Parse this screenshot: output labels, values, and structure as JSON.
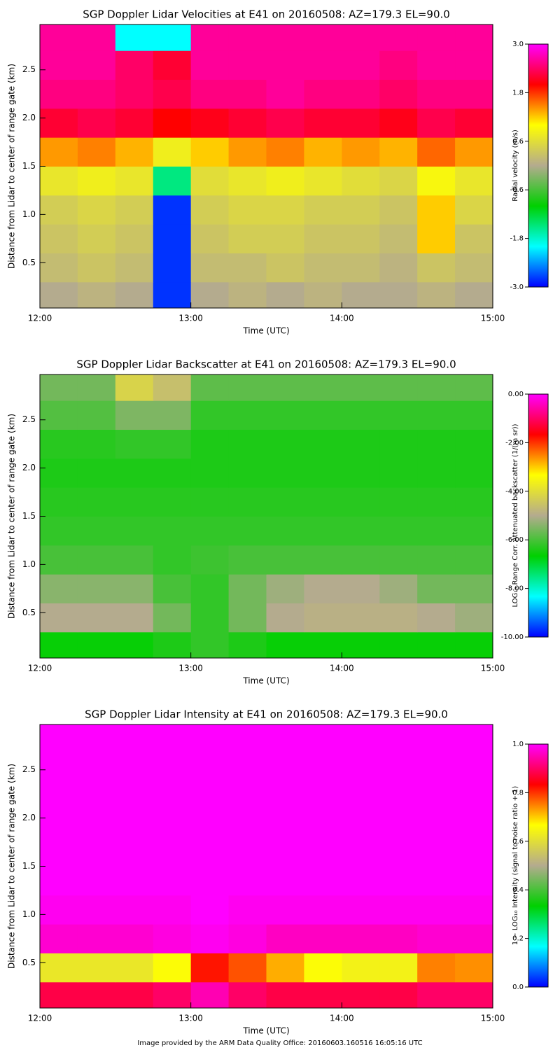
{
  "chart_data": [
    {
      "type": "heatmap",
      "title": "SGP Doppler Lidar Velocities at E41 on 20160508: AZ=179.3 EL=90.0",
      "x_label": "Time (UTC)",
      "y_label": "Distance from Lidar to center of range gate (km)",
      "colorbar_label": "Radial velocity (m/s)",
      "xlim": [
        12,
        15
      ],
      "xticks": [
        {
          "value": 12,
          "label": "12:00"
        },
        {
          "value": 13,
          "label": "13:00"
        },
        {
          "value": 14,
          "label": "14:00"
        },
        {
          "value": 15,
          "label": "15:00"
        }
      ],
      "ylim": [
        0.03,
        2.97
      ],
      "yticks": [
        0.5,
        {
          "value": 1,
          "label": "1.0"
        },
        1.5,
        {
          "value": 2,
          "label": "2.0"
        },
        2.5
      ],
      "zlim": [
        -3,
        3
      ],
      "zticks": [
        {
          "value": -3,
          "label": "-3.0"
        },
        {
          "value": -1.8,
          "label": "-1.8"
        },
        {
          "value": -0.6,
          "label": "-0.6"
        },
        {
          "value": 0.6,
          "label": "0.6"
        },
        {
          "value": 1.8,
          "label": "1.8"
        },
        {
          "value": 3,
          "label": "3.0"
        }
      ],
      "colormap": [
        "#0000ff",
        "#00ffff",
        "#00d000",
        "#b4ab8e",
        "#ffff00",
        "#ff0000",
        "#ff00ff"
      ],
      "x": [
        12.125,
        12.375,
        12.625,
        12.875,
        13.125,
        13.375,
        13.625,
        13.875,
        14.125,
        14.375,
        14.625,
        14.875
      ],
      "y": [
        0.15,
        0.45,
        0.75,
        1.05,
        1.35,
        1.65,
        1.95,
        2.25,
        2.55,
        2.85
      ],
      "z": [
        [
          0.0,
          0.1,
          0.0,
          -2.8,
          0.0,
          0.1,
          0.0,
          0.1,
          0.0,
          0.0,
          0.1,
          0.0
        ],
        [
          0.2,
          0.3,
          0.2,
          -2.8,
          0.2,
          0.2,
          0.3,
          0.2,
          0.2,
          0.1,
          0.3,
          0.2
        ],
        [
          0.3,
          0.4,
          0.3,
          -2.8,
          0.3,
          0.4,
          0.4,
          0.3,
          0.3,
          0.2,
          1.2,
          0.3
        ],
        [
          0.4,
          0.5,
          0.4,
          -2.8,
          0.4,
          0.5,
          0.5,
          0.4,
          0.4,
          0.3,
          1.2,
          0.5
        ],
        [
          0.7,
          0.8,
          0.7,
          -1.5,
          0.6,
          0.7,
          0.8,
          0.7,
          0.6,
          0.5,
          0.9,
          0.7
        ],
        [
          1.4,
          1.5,
          1.3,
          0.8,
          1.2,
          1.4,
          1.5,
          1.3,
          1.4,
          1.3,
          1.6,
          1.4
        ],
        [
          2.2,
          2.3,
          2.2,
          2.0,
          2.1,
          2.2,
          2.3,
          2.2,
          2.2,
          2.1,
          2.3,
          2.2
        ],
        [
          2.5,
          2.5,
          2.4,
          2.3,
          2.5,
          2.5,
          2.6,
          2.5,
          2.5,
          2.4,
          2.5,
          2.5
        ],
        [
          2.6,
          2.6,
          2.4,
          2.2,
          2.6,
          2.6,
          2.6,
          2.6,
          2.6,
          2.5,
          2.6,
          2.6
        ],
        [
          2.6,
          2.6,
          -2.0,
          -2.0,
          2.6,
          2.6,
          2.6,
          2.6,
          2.6,
          2.6,
          2.6,
          2.6
        ]
      ]
    },
    {
      "type": "heatmap",
      "title": "SGP Doppler Lidar Backscatter at E41 on 20160508: AZ=179.3 EL=90.0",
      "x_label": "Time (UTC)",
      "y_label": "Distance from Lidar to center of range gate (km)",
      "colorbar_label": "LOG₁₀ Range Corr. Attenuated backscatter (1/(m sr))",
      "xlim": [
        12,
        15
      ],
      "xticks": [
        {
          "value": 12,
          "label": "12:00"
        },
        {
          "value": 13,
          "label": "13:00"
        },
        {
          "value": 14,
          "label": "14:00"
        },
        {
          "value": 15,
          "label": "15:00"
        }
      ],
      "ylim": [
        0.03,
        2.97
      ],
      "yticks": [
        0.5,
        {
          "value": 1,
          "label": "1.0"
        },
        1.5,
        {
          "value": 2,
          "label": "2.0"
        },
        2.5
      ],
      "zlim": [
        -10,
        0
      ],
      "zticks": [
        {
          "value": -10,
          "label": "-10.00"
        },
        {
          "value": -8,
          "label": "-8.00"
        },
        {
          "value": -6,
          "label": "-6.00"
        },
        {
          "value": -4,
          "label": "-4.00"
        },
        {
          "value": -2,
          "label": "-2.00"
        },
        {
          "value": 0,
          "label": "0.00"
        }
      ],
      "colormap": [
        "#0000ff",
        "#00ffff",
        "#00d000",
        "#b4ab8e",
        "#ffff00",
        "#ff0000",
        "#ff00ff"
      ],
      "x": [
        12.125,
        12.375,
        12.625,
        12.875,
        13.125,
        13.375,
        13.625,
        13.875,
        14.125,
        14.375,
        14.625,
        14.875
      ],
      "y": [
        0.15,
        0.45,
        0.75,
        1.05,
        1.35,
        1.65,
        1.95,
        2.25,
        2.55,
        2.85
      ],
      "z": [
        [
          -6.6,
          -6.6,
          -6.6,
          -6.4,
          -6.2,
          -6.4,
          -6.6,
          -6.6,
          -6.6,
          -6.6,
          -6.6,
          -6.6
        ],
        [
          -5.0,
          -5.0,
          -5.0,
          -5.6,
          -6.2,
          -5.6,
          -5.0,
          -4.9,
          -4.9,
          -4.9,
          -5.0,
          -5.2
        ],
        [
          -5.4,
          -5.4,
          -5.4,
          -6.0,
          -6.2,
          -5.6,
          -5.2,
          -5.0,
          -5.0,
          -5.2,
          -5.6,
          -5.6
        ],
        [
          -6.0,
          -6.0,
          -6.0,
          -6.2,
          -6.1,
          -6.0,
          -6.0,
          -6.0,
          -6.0,
          -6.0,
          -6.0,
          -6.0
        ],
        [
          -6.2,
          -6.2,
          -6.2,
          -6.2,
          -6.2,
          -6.2,
          -6.2,
          -6.2,
          -6.2,
          -6.2,
          -6.2,
          -6.2
        ],
        [
          -6.3,
          -6.3,
          -6.3,
          -6.3,
          -6.3,
          -6.3,
          -6.3,
          -6.3,
          -6.3,
          -6.3,
          -6.3,
          -6.3
        ],
        [
          -6.4,
          -6.4,
          -6.4,
          -6.4,
          -6.4,
          -6.4,
          -6.4,
          -6.4,
          -6.4,
          -6.4,
          -6.4,
          -6.4
        ],
        [
          -6.3,
          -6.3,
          -6.2,
          -6.2,
          -6.4,
          -6.4,
          -6.4,
          -6.4,
          -6.4,
          -6.4,
          -6.4,
          -6.4
        ],
        [
          -5.9,
          -5.9,
          -5.5,
          -5.5,
          -6.2,
          -6.2,
          -6.2,
          -6.2,
          -6.2,
          -6.2,
          -6.2,
          -6.2
        ],
        [
          -5.6,
          -5.6,
          -4.2,
          -4.6,
          -5.8,
          -5.8,
          -5.8,
          -5.8,
          -5.8,
          -5.8,
          -5.8,
          -5.8
        ]
      ]
    },
    {
      "type": "heatmap",
      "title": "SGP Doppler Lidar Intensity at E41 on 20160508: AZ=179.3 EL=90.0",
      "x_label": "Time (UTC)",
      "y_label": "Distance from Lidar to center of range gate (km)",
      "colorbar_label": "1 − LOG₁₀ Intensity (signal to noise ratio + 1)",
      "xlim": [
        12,
        15
      ],
      "xticks": [
        {
          "value": 12,
          "label": "12:00"
        },
        {
          "value": 13,
          "label": "13:00"
        },
        {
          "value": 14,
          "label": "14:00"
        },
        {
          "value": 15,
          "label": "15:00"
        }
      ],
      "ylim": [
        0.03,
        2.97
      ],
      "yticks": [
        0.5,
        {
          "value": 1,
          "label": "1.0"
        },
        1.5,
        {
          "value": 2,
          "label": "2.0"
        },
        2.5
      ],
      "zlim": [
        0,
        1
      ],
      "zticks": [
        {
          "value": 0,
          "label": "0.0"
        },
        0.2,
        0.4,
        0.6,
        0.8,
        {
          "value": 1,
          "label": "1.0"
        }
      ],
      "colormap": [
        "#0000ff",
        "#00ffff",
        "#00d000",
        "#b4ab8e",
        "#ffff00",
        "#ff0000",
        "#ff00ff"
      ],
      "x": [
        12.125,
        12.375,
        12.625,
        12.875,
        13.125,
        13.375,
        13.625,
        13.875,
        14.125,
        14.375,
        14.625,
        14.875
      ],
      "y": [
        0.15,
        0.45,
        0.75,
        1.05,
        1.35,
        1.65,
        1.95,
        2.25,
        2.55,
        2.85
      ],
      "z": [
        [
          0.88,
          0.88,
          0.88,
          0.9,
          0.95,
          0.9,
          0.88,
          0.88,
          0.88,
          0.88,
          0.9,
          0.9
        ],
        [
          0.62,
          0.62,
          0.62,
          0.66,
          0.82,
          0.78,
          0.72,
          0.66,
          0.64,
          0.64,
          0.75,
          0.74
        ],
        [
          0.97,
          0.97,
          0.97,
          0.98,
          0.99,
          0.98,
          0.96,
          0.96,
          0.96,
          0.96,
          0.97,
          0.97
        ],
        [
          0.99,
          0.99,
          0.99,
          0.99,
          1.0,
          0.99,
          0.99,
          0.99,
          0.99,
          0.99,
          0.99,
          0.99
        ],
        [
          1.0,
          1.0,
          1.0,
          1.0,
          1.0,
          1.0,
          1.0,
          1.0,
          1.0,
          1.0,
          1.0,
          1.0
        ],
        [
          1.0,
          1.0,
          1.0,
          1.0,
          1.0,
          1.0,
          1.0,
          1.0,
          1.0,
          1.0,
          1.0,
          1.0
        ],
        [
          1.0,
          1.0,
          1.0,
          1.0,
          1.0,
          1.0,
          1.0,
          1.0,
          1.0,
          1.0,
          1.0,
          1.0
        ],
        [
          1.0,
          1.0,
          1.0,
          1.0,
          1.0,
          1.0,
          1.0,
          1.0,
          1.0,
          1.0,
          1.0,
          1.0
        ],
        [
          1.0,
          1.0,
          1.0,
          1.0,
          1.0,
          1.0,
          1.0,
          1.0,
          1.0,
          1.0,
          1.0,
          1.0
        ],
        [
          1.0,
          1.0,
          1.0,
          1.0,
          1.0,
          1.0,
          1.0,
          1.0,
          1.0,
          1.0,
          1.0,
          1.0
        ]
      ]
    }
  ],
  "footer": "Image provided by the ARM Data Quality Office: 20160603.160516 16:05:16 UTC"
}
